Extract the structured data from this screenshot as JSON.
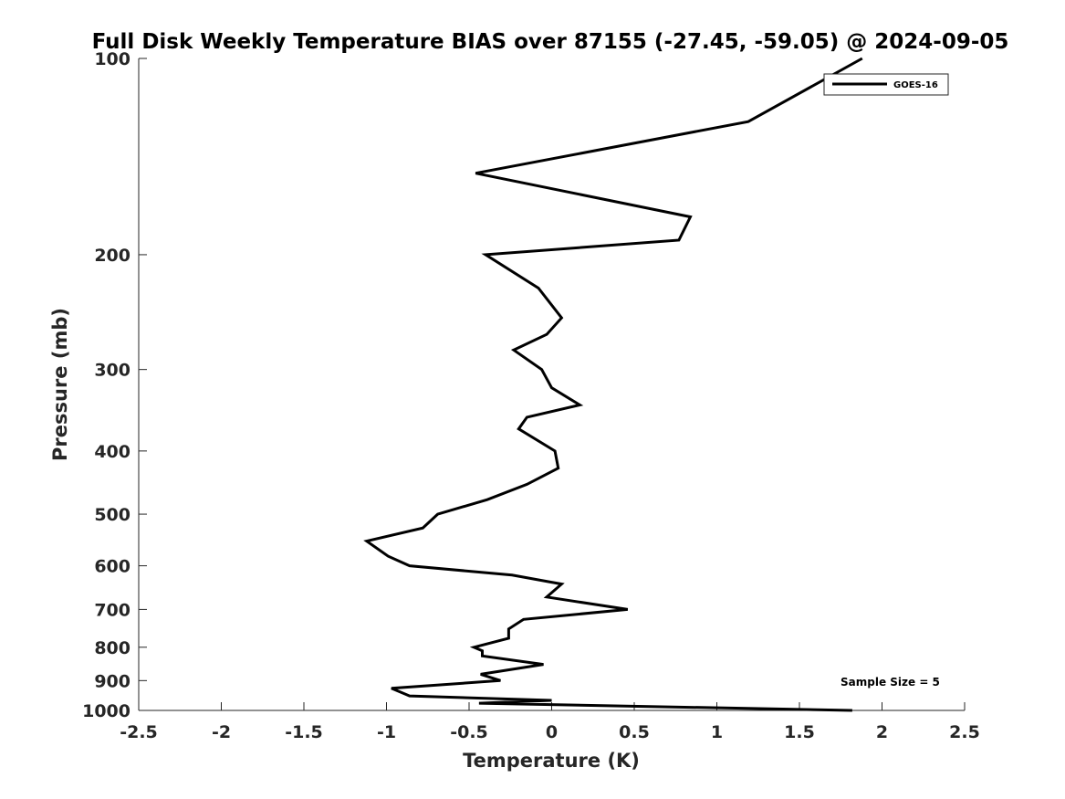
{
  "chart_data": {
    "type": "line",
    "title": "Full Disk Weekly Temperature BIAS over 87155 (-27.45, -59.05) @ 2024-09-05",
    "xlabel": "Temperature (K)",
    "ylabel": "Pressure (mb)",
    "xlim": [
      -2.5,
      2.5
    ],
    "ylim": [
      1000,
      100
    ],
    "yscale": "log",
    "x_ticks": [
      "-2.5",
      "-2",
      "-1.5",
      "-1",
      "-0.5",
      "0",
      "0.5",
      "1",
      "1.5",
      "2",
      "2.5"
    ],
    "y_ticks": [
      "100",
      "200",
      "300",
      "400",
      "500",
      "600",
      "700",
      "800",
      "900",
      "1000"
    ],
    "legend": {
      "entries": [
        "GOES-16"
      ],
      "location": "top-right"
    },
    "annotation": "Sample Size = 5",
    "series": [
      {
        "name": "GOES-16",
        "color": "#000000",
        "points": [
          [
            1.88,
            100
          ],
          [
            1.19,
            125
          ],
          [
            -0.46,
            150
          ],
          [
            0.84,
            175
          ],
          [
            0.77,
            190
          ],
          [
            -0.4,
            200
          ],
          [
            -0.08,
            225
          ],
          [
            0.06,
            250
          ],
          [
            -0.03,
            265
          ],
          [
            -0.23,
            280
          ],
          [
            -0.06,
            300
          ],
          [
            0.0,
            320
          ],
          [
            0.17,
            340
          ],
          [
            -0.15,
            355
          ],
          [
            -0.2,
            370
          ],
          [
            0.02,
            400
          ],
          [
            0.04,
            425
          ],
          [
            -0.15,
            450
          ],
          [
            -0.39,
            475
          ],
          [
            -0.69,
            500
          ],
          [
            -0.78,
            525
          ],
          [
            -1.12,
            550
          ],
          [
            -0.99,
            580
          ],
          [
            -0.86,
            600
          ],
          [
            -0.24,
            620
          ],
          [
            0.06,
            640
          ],
          [
            -0.03,
            670
          ],
          [
            0.46,
            700
          ],
          [
            -0.17,
            725
          ],
          [
            -0.26,
            750
          ],
          [
            -0.26,
            775
          ],
          [
            -0.47,
            800
          ],
          [
            -0.42,
            810
          ],
          [
            -0.42,
            825
          ],
          [
            -0.05,
            850
          ],
          [
            -0.43,
            880
          ],
          [
            -0.31,
            900
          ],
          [
            -0.97,
            925
          ],
          [
            -0.86,
            950
          ],
          [
            0.0,
            965
          ],
          [
            -0.44,
            975
          ],
          [
            1.82,
            1000
          ]
        ]
      }
    ]
  }
}
